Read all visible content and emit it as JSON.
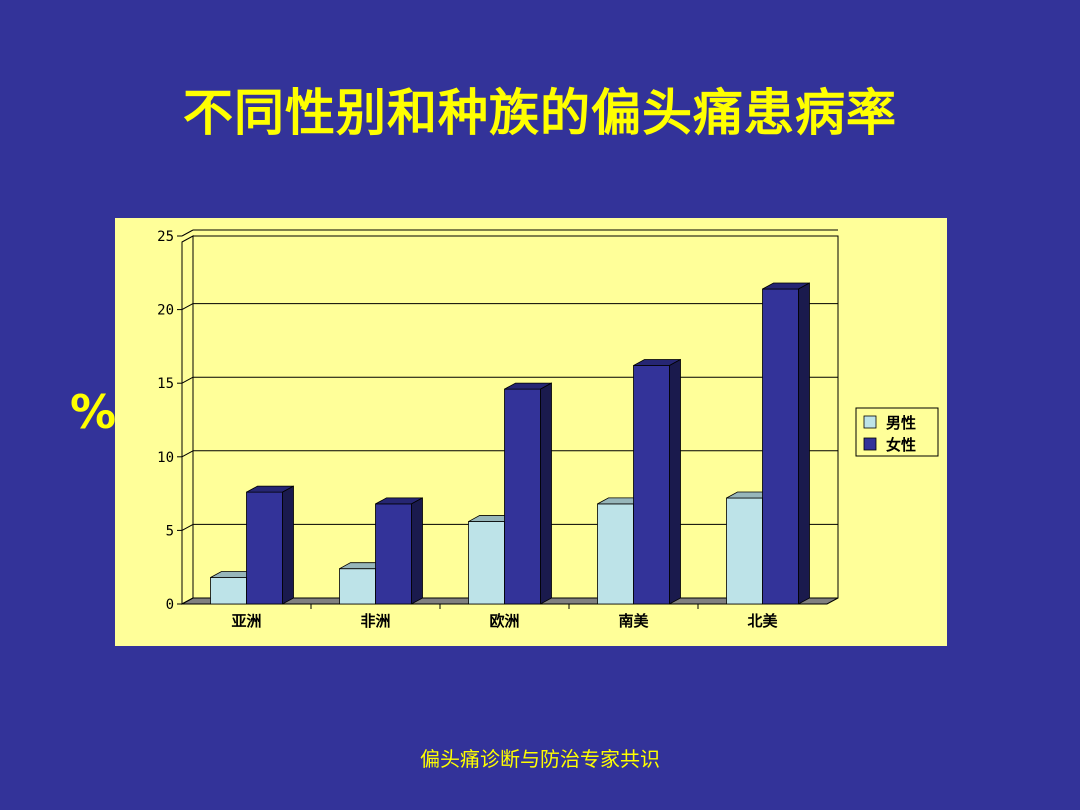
{
  "slide": {
    "title": "不同性别和种族的偏头痛患病率",
    "unit_label": "%",
    "footer": "偏头痛诊断与防治专家共识"
  },
  "colors": {
    "background": "#333399",
    "title_text": "#ffff00",
    "chart_panel": "#ffff99",
    "male_bar": "#bde3e8",
    "female_bar": "#333399"
  },
  "chart_data": {
    "type": "bar",
    "style": "3d-clustered-column",
    "categories": [
      "亚洲",
      "非洲",
      "欧洲",
      "南美",
      "北美"
    ],
    "series": [
      {
        "name": "男性",
        "values": [
          1.8,
          2.4,
          5.6,
          6.8,
          7.2
        ]
      },
      {
        "name": "女性",
        "values": [
          7.6,
          6.8,
          14.6,
          16.2,
          21.4
        ]
      }
    ],
    "yticks": [
      "0",
      "5",
      "10",
      "15",
      "20",
      "25"
    ],
    "ylim": [
      0,
      25
    ],
    "grid": true,
    "legend": "right"
  }
}
